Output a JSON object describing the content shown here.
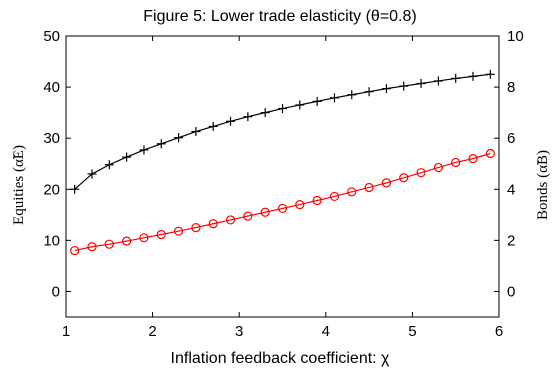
{
  "chart_data": {
    "type": "line",
    "title": "Figure 5: Lower trade elasticity (θ=0.8)",
    "xlabel": "Inflation feedback coefficient: χ",
    "ylabel_left": "Equities (α̃E)",
    "ylabel_right": "Bonds (α̃B)",
    "xlim": [
      1,
      6
    ],
    "ylim_left": [
      -5,
      50
    ],
    "ylim_right": [
      -1,
      10
    ],
    "x_ticks": [
      "1",
      "2",
      "3",
      "4",
      "5",
      "6"
    ],
    "y_left_ticks": [
      "0",
      "10",
      "20",
      "30",
      "40",
      "50"
    ],
    "y_right_ticks": [
      "0",
      "2",
      "4",
      "6",
      "8",
      "10"
    ],
    "x": [
      1.1,
      1.3,
      1.5,
      1.7,
      1.9,
      2.1,
      2.3,
      2.5,
      2.7,
      2.9,
      3.1,
      3.3,
      3.5,
      3.7,
      3.9,
      4.1,
      4.3,
      4.5,
      4.7,
      4.9,
      5.1,
      5.3,
      5.5,
      5.7,
      5.9
    ],
    "series": [
      {
        "axis": "left",
        "color": "#000000",
        "marker": "plus",
        "values": [
          20.0,
          23.0,
          24.8,
          26.3,
          27.7,
          28.9,
          30.1,
          31.3,
          32.3,
          33.3,
          34.2,
          35.0,
          35.8,
          36.5,
          37.2,
          37.9,
          38.5,
          39.1,
          39.7,
          40.2,
          40.7,
          41.2,
          41.7,
          42.1,
          42.5
        ]
      },
      {
        "axis": "right",
        "color": "#ff0000",
        "marker": "circle",
        "values": [
          1.6,
          1.75,
          1.85,
          1.97,
          2.1,
          2.23,
          2.36,
          2.5,
          2.65,
          2.8,
          2.95,
          3.1,
          3.25,
          3.4,
          3.56,
          3.72,
          3.9,
          4.07,
          4.25,
          4.45,
          4.65,
          4.85,
          5.05,
          5.2,
          5.4
        ]
      }
    ],
    "grid": false,
    "legend": "none"
  }
}
